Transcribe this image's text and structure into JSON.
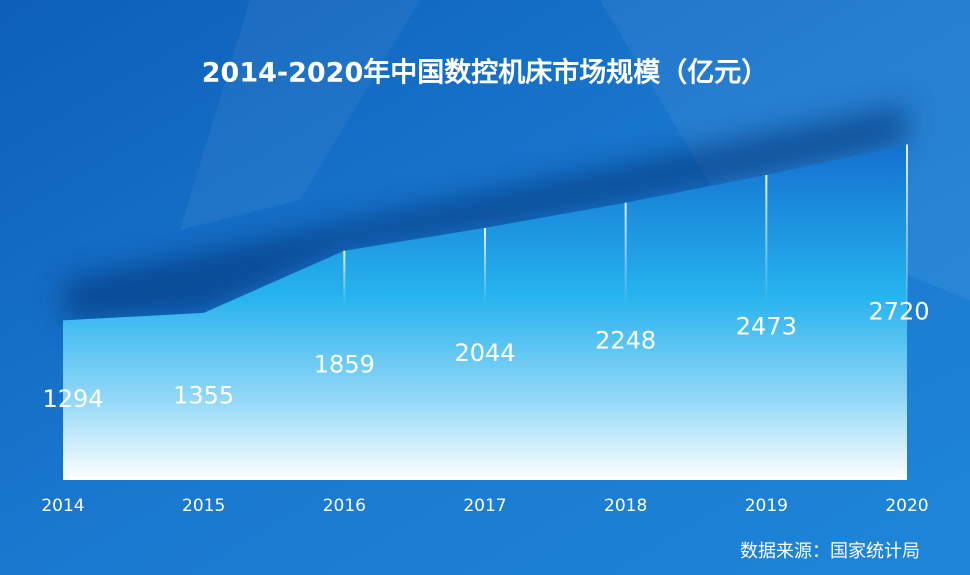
{
  "chart_data": {
    "type": "area",
    "title": "2014-2020年中国数控机床市场规模（亿元）",
    "categories": [
      "2014",
      "2015",
      "2016",
      "2017",
      "2018",
      "2019",
      "2020"
    ],
    "values": [
      1294,
      1355,
      1859,
      2044,
      2248,
      2473,
      2720
    ],
    "ylim": [
      0,
      3000
    ],
    "source": "数据来源：国家统计局"
  }
}
